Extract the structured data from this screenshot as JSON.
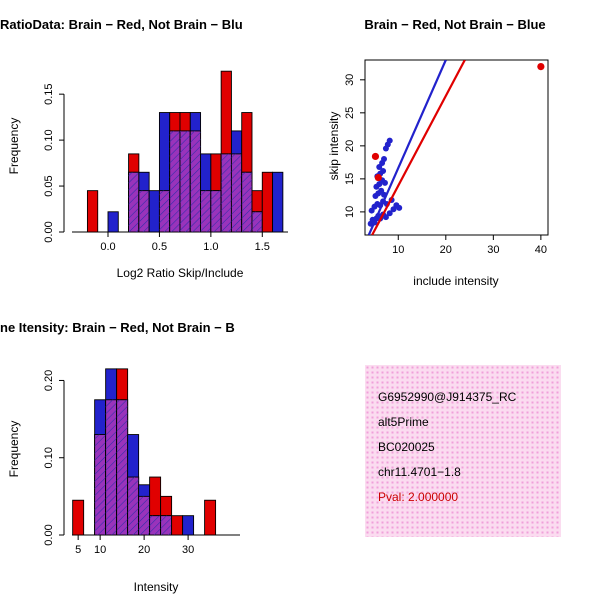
{
  "colors": {
    "red": "#e00000",
    "blue": "#2222cc",
    "overlap": "#9933bb",
    "hatch": "#2e2ea8",
    "pval_red": "#cc0000",
    "box_pink": "#fbdcf0",
    "box_dot": "#f0a0da",
    "axis": "#000000"
  },
  "chart_data": [
    {
      "type": "bar",
      "subtype": "overlaid-histograms",
      "title": "RatioData: Brain − Red, Not Brain − Blu",
      "xlabel": "Log2 Ratio Skip/Include",
      "ylabel": "Frequency",
      "bin_start": -0.3,
      "bin_width": 0.1,
      "xlim": [
        -0.35,
        1.75
      ],
      "ylim": [
        0,
        0.185
      ],
      "xticks": [
        0.0,
        0.5,
        1.0,
        1.5
      ],
      "xtick_labels": [
        "0.0",
        "0.5",
        "1.0",
        "1.5"
      ],
      "yticks": [
        0.0,
        0.05,
        0.1,
        0.15
      ],
      "ytick_labels": [
        "0.00",
        "0.05",
        "0.10",
        "0.15"
      ],
      "grid": false,
      "legend": "none",
      "series": [
        {
          "name": "Brain",
          "color_key": "red",
          "values": [
            0,
            0.045,
            0,
            0,
            0,
            0.085,
            0.045,
            0,
            0.045,
            0.13,
            0.13,
            0.11,
            0.045,
            0.085,
            0.175,
            0.085,
            0.13,
            0.045,
            0.065,
            0
          ]
        },
        {
          "name": "Not Brain",
          "color_key": "blue",
          "values": [
            0,
            0,
            0,
            0.022,
            0,
            0.065,
            0.065,
            0.045,
            0.13,
            0.11,
            0.11,
            0.13,
            0.085,
            0.045,
            0.085,
            0.11,
            0.065,
            0.022,
            0,
            0.065
          ]
        }
      ]
    },
    {
      "type": "scatter",
      "title": "Brain − Red, Not Brain − Blue",
      "xlabel": "include intensity",
      "ylabel": "skip intensity",
      "xlim": [
        3,
        41.5
      ],
      "ylim": [
        6.5,
        33
      ],
      "xticks": [
        10,
        20,
        30,
        40
      ],
      "xtick_labels": [
        "10",
        "20",
        "30",
        "40"
      ],
      "yticks": [
        10,
        15,
        20,
        25,
        30
      ],
      "ytick_labels": [
        "10",
        "15",
        "20",
        "25",
        "30"
      ],
      "grid": false,
      "legend": "none",
      "box": true,
      "series": [
        {
          "name": "Not Brain",
          "color_key": "blue",
          "point_radius": 3,
          "points": [
            [
              4.2,
              8.2
            ],
            [
              4.6,
              8.8
            ],
            [
              5.0,
              8.4
            ],
            [
              5.4,
              9.0
            ],
            [
              5.8,
              9.4
            ],
            [
              6.2,
              9.0
            ],
            [
              6.8,
              9.6
            ],
            [
              7.4,
              9.2
            ],
            [
              8.2,
              9.8
            ],
            [
              9.0,
              10.4
            ],
            [
              4.4,
              10.2
            ],
            [
              5.0,
              10.8
            ],
            [
              5.6,
              11.2
            ],
            [
              6.2,
              11.0
            ],
            [
              6.8,
              11.6
            ],
            [
              7.6,
              11.2
            ],
            [
              8.6,
              11.8
            ],
            [
              9.6,
              11.0
            ],
            [
              10.2,
              10.6
            ],
            [
              5.2,
              12.4
            ],
            [
              5.8,
              12.8
            ],
            [
              6.4,
              13.2
            ],
            [
              7.0,
              12.6
            ],
            [
              5.4,
              13.8
            ],
            [
              6.0,
              14.2
            ],
            [
              6.6,
              14.8
            ],
            [
              7.2,
              14.4
            ],
            [
              5.6,
              15.4
            ],
            [
              6.2,
              15.8
            ],
            [
              6.8,
              16.2
            ],
            [
              6.0,
              16.8
            ],
            [
              6.6,
              17.4
            ],
            [
              7.0,
              18.0
            ],
            [
              7.4,
              19.6
            ],
            [
              7.8,
              20.2
            ],
            [
              8.2,
              20.8
            ]
          ]
        },
        {
          "name": "Brain",
          "color_key": "red",
          "point_radius": 3.6,
          "points": [
            [
              5.2,
              18.4
            ],
            [
              5.8,
              15.2
            ],
            [
              40,
              32
            ]
          ]
        }
      ],
      "lines": [
        {
          "name": "blue-fit-line",
          "color_key": "blue",
          "x1": 3.8,
          "y1": 6.5,
          "x2": 20,
          "y2": 33
        },
        {
          "name": "red-fit-line",
          "color_key": "red",
          "x1": 4.5,
          "y1": 6.5,
          "x2": 24,
          "y2": 33
        }
      ]
    },
    {
      "type": "bar",
      "subtype": "overlaid-histograms",
      "title": "ne Itensity: Brain − Red, Not Brain − B",
      "xlabel": "Intensity",
      "ylabel": "Frequency",
      "bin_start": 3.75,
      "bin_width": 2.5,
      "xlim": [
        3.6,
        41.8
      ],
      "ylim": [
        0,
        0.22
      ],
      "xticks": [
        5,
        10,
        20,
        30
      ],
      "xtick_labels": [
        "5",
        "10",
        "20",
        "30"
      ],
      "yticks": [
        0.0,
        0.1,
        0.2
      ],
      "ytick_labels": [
        "0.00",
        "0.10",
        "0.20"
      ],
      "grid": false,
      "legend": "none",
      "series": [
        {
          "name": "Brain",
          "color_key": "red",
          "values": [
            0.045,
            0,
            0.13,
            0.175,
            0.215,
            0.075,
            0.05,
            0.075,
            0.05,
            0.025,
            0,
            0,
            0.045
          ]
        },
        {
          "name": "Not Brain",
          "color_key": "blue",
          "values": [
            0,
            0,
            0.175,
            0.215,
            0.175,
            0.13,
            0.065,
            0.025,
            0.025,
            0,
            0.025,
            0,
            0
          ]
        }
      ]
    }
  ],
  "info_box": {
    "lines": [
      "G6952990@J914375_RC",
      "alt5Prime",
      "BC020025",
      "chr11.4701−1.8"
    ],
    "pval": "Pval: 2.000000"
  }
}
